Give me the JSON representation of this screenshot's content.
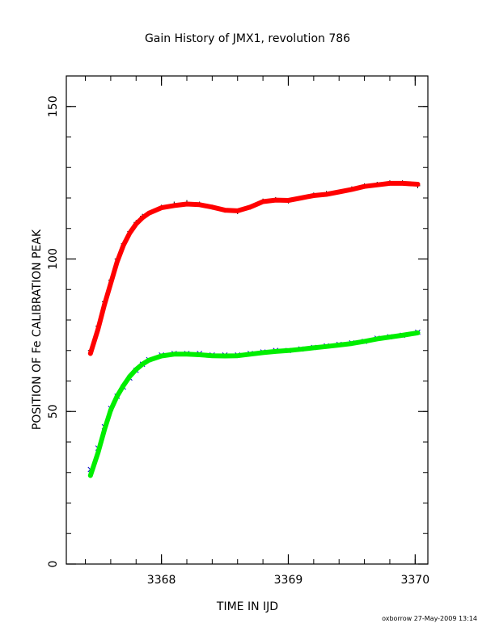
{
  "chart_data": {
    "type": "scatter",
    "title": "Gain History of JMX1, revolution 786",
    "xlabel": "TIME IN IJD",
    "ylabel": "POSITION OF Fe CALIBRATION PEAK",
    "xlim": [
      3367.25,
      3370.1
    ],
    "ylim": [
      0,
      160
    ],
    "x_ticks": [
      3368,
      3369,
      3370
    ],
    "x_tick_labels": [
      "3368",
      "3369",
      "3370"
    ],
    "y_ticks": [
      0,
      50,
      100,
      150
    ],
    "y_tick_labels": [
      "0",
      "50",
      "100",
      "150"
    ],
    "x_minor_step": 0.2,
    "y_minor_step": 10,
    "grid": false,
    "legend": "none",
    "series": [
      {
        "marker": "plus",
        "color": "#000000",
        "x": [
          3367.44,
          3367.5,
          3367.55,
          3367.6,
          3367.65,
          3367.7,
          3367.75,
          3367.8,
          3367.85,
          3367.9,
          3368.0,
          3368.1,
          3368.2,
          3368.3,
          3368.4,
          3368.5,
          3368.6,
          3368.7,
          3368.8,
          3368.9,
          3369.0,
          3369.1,
          3369.2,
          3369.3,
          3369.4,
          3369.5,
          3369.6,
          3369.7,
          3369.8,
          3369.9,
          3370.02
        ],
        "y": [
          70,
          78,
          86,
          93,
          100,
          105,
          109,
          112,
          114,
          115,
          117,
          118,
          118.5,
          118,
          117,
          116,
          115.5,
          117,
          119,
          119.5,
          119,
          120,
          121,
          121.5,
          122,
          123,
          124,
          124.5,
          125,
          125,
          124
        ]
      },
      {
        "marker": "x",
        "color": "#0000cc",
        "x": [
          3367.44,
          3367.5,
          3367.55,
          3367.6,
          3367.65,
          3367.7,
          3367.75,
          3367.8,
          3367.85,
          3367.9,
          3368.0,
          3368.1,
          3368.2,
          3368.3,
          3368.4,
          3368.5,
          3368.6,
          3368.7,
          3368.8,
          3368.9,
          3369.0,
          3369.1,
          3369.2,
          3369.3,
          3369.4,
          3369.5,
          3369.6,
          3369.7,
          3369.8,
          3369.9,
          3370.02
        ],
        "y": [
          31,
          38,
          45,
          51,
          55,
          58,
          61,
          63.5,
          65.5,
          67,
          68.5,
          69,
          69,
          69,
          68.5,
          68.5,
          68.5,
          69,
          69.5,
          70,
          70,
          70.5,
          71,
          71.5,
          72,
          72.5,
          73,
          74,
          74.5,
          75,
          76
        ]
      },
      {
        "type": "line",
        "color": "#ff0000",
        "x": [
          3367.44,
          3367.5,
          3367.55,
          3367.6,
          3367.65,
          3367.7,
          3367.75,
          3367.8,
          3367.85,
          3367.9,
          3368.0,
          3368.1,
          3368.2,
          3368.3,
          3368.4,
          3368.5,
          3368.6,
          3368.7,
          3368.8,
          3368.9,
          3369.0,
          3369.1,
          3369.2,
          3369.3,
          3369.4,
          3369.5,
          3369.6,
          3369.7,
          3369.8,
          3369.9,
          3370.02
        ],
        "y": [
          69,
          77,
          85,
          92,
          99,
          104.5,
          108.5,
          111.5,
          113.5,
          115,
          116.8,
          117.5,
          118,
          117.8,
          117,
          116,
          115.8,
          117,
          118.8,
          119.3,
          119.2,
          120,
          120.8,
          121.2,
          122,
          122.8,
          123.8,
          124.3,
          124.8,
          124.8,
          124.5
        ]
      },
      {
        "type": "line",
        "color": "#00ee00",
        "x": [
          3367.44,
          3367.5,
          3367.55,
          3367.6,
          3367.65,
          3367.7,
          3367.75,
          3367.8,
          3367.85,
          3367.9,
          3368.0,
          3368.1,
          3368.2,
          3368.3,
          3368.4,
          3368.5,
          3368.6,
          3368.7,
          3368.8,
          3368.9,
          3369.0,
          3369.1,
          3369.2,
          3369.3,
          3369.4,
          3369.5,
          3369.6,
          3369.7,
          3369.8,
          3369.9,
          3370.02
        ],
        "y": [
          29,
          36.5,
          44,
          50.5,
          55,
          58.5,
          61.5,
          63.8,
          65.5,
          66.8,
          68.2,
          68.8,
          68.8,
          68.6,
          68.3,
          68.2,
          68.3,
          68.8,
          69.3,
          69.7,
          70,
          70.4,
          70.9,
          71.3,
          71.8,
          72.3,
          73,
          73.8,
          74.4,
          75,
          75.8
        ]
      }
    ]
  },
  "footer": {
    "credit": "oxborrow 27-May-2009 13:14"
  }
}
